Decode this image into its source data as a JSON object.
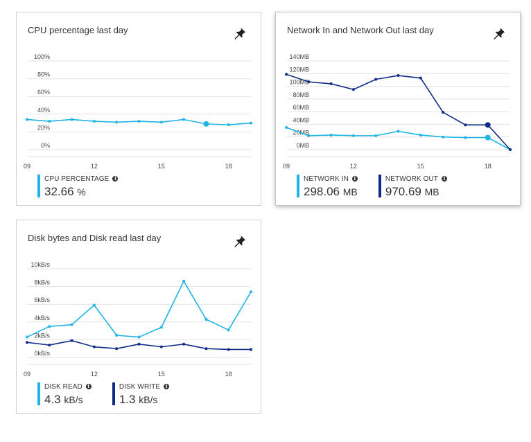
{
  "colors": {
    "series_light": "#1eb4e6",
    "series_dark": "#0e2a86",
    "grid": "#e2e2e2",
    "axis_text": "#444444"
  },
  "tiles": [
    {
      "title": "CPU percentage last day",
      "pin_icon": "pin-icon",
      "legend": [
        {
          "label": "CPU PERCENTAGE",
          "value": "32.66",
          "unit": "%",
          "color": "#1eb4e6"
        }
      ]
    },
    {
      "title": "Network In and Network Out last day",
      "pin_icon": "pin-icon",
      "legend": [
        {
          "label": "NETWORK IN",
          "value": "298.06",
          "unit": "MB",
          "color": "#1eb4e6"
        },
        {
          "label": "NETWORK OUT",
          "value": "970.69",
          "unit": "MB",
          "color": "#0e2a86"
        }
      ]
    },
    {
      "title": "Disk bytes and Disk read last day",
      "pin_icon": "pin-icon",
      "legend": [
        {
          "label": "DISK READ",
          "value": "4.3",
          "unit": "kB/s",
          "color": "#1eb4e6"
        },
        {
          "label": "DISK WRITE",
          "value": "1.3",
          "unit": "kB/s",
          "color": "#0e2a86"
        }
      ]
    }
  ],
  "chart_data": [
    {
      "type": "line",
      "title": "CPU percentage last day",
      "x": [
        9,
        10,
        11,
        12,
        13,
        14,
        15,
        16,
        17,
        18,
        19
      ],
      "x_ticks": [
        "09",
        "12",
        "15",
        "18"
      ],
      "x_tick_values": [
        9,
        12,
        15,
        18
      ],
      "xlim": [
        9,
        19
      ],
      "y_ticks": [
        "0%",
        "20%",
        "40%",
        "60%",
        "80%",
        "100%"
      ],
      "ylim": [
        0,
        100
      ],
      "grid": true,
      "series": [
        {
          "name": "CPU PERCENTAGE",
          "color": "#1eb4e6",
          "values": [
            34,
            32,
            34,
            32,
            31,
            32,
            31,
            34,
            29,
            28,
            30
          ],
          "highlight_index": 8
        }
      ]
    },
    {
      "type": "line",
      "title": "Network In and Network Out last day",
      "x": [
        9,
        10,
        11,
        12,
        13,
        14,
        15,
        16,
        17,
        18,
        19
      ],
      "x_ticks": [
        "09",
        "12",
        "15",
        "18"
      ],
      "x_tick_values": [
        9,
        12,
        15,
        18
      ],
      "xlim": [
        9,
        19
      ],
      "y_ticks": [
        "0MB",
        "20MB",
        "40MB",
        "60MB",
        "80MB",
        "100MB",
        "120MB",
        "140MB"
      ],
      "ylim": [
        0,
        140
      ],
      "grid": true,
      "series": [
        {
          "name": "NETWORK IN",
          "color": "#1eb4e6",
          "values": [
            35,
            22,
            23,
            22,
            22,
            29,
            23,
            20,
            19,
            19,
            0
          ],
          "highlight_index": 9
        },
        {
          "name": "NETWORK OUT",
          "color": "#0e2a86",
          "values": [
            119,
            107,
            104,
            95,
            111,
            117,
            113,
            59,
            39,
            39,
            0
          ],
          "highlight_index": 9
        }
      ]
    },
    {
      "type": "line",
      "title": "Disk bytes and Disk read last day",
      "x": [
        9,
        10,
        11,
        12,
        13,
        14,
        15,
        16,
        17,
        18,
        19
      ],
      "x_ticks": [
        "09",
        "12",
        "15",
        "18"
      ],
      "x_tick_values": [
        9,
        12,
        15,
        18
      ],
      "xlim": [
        9,
        19
      ],
      "y_ticks": [
        "0kB/s",
        "2kB/s",
        "4kB/s",
        "6kB/s",
        "8kB/s",
        "10kB/s"
      ],
      "ylim": [
        0,
        10
      ],
      "grid": true,
      "series": [
        {
          "name": "DISK READ",
          "color": "#1eb4e6",
          "values": [
            2.3,
            3.5,
            3.7,
            5.9,
            2.5,
            2.3,
            3.4,
            8.6,
            4.3,
            3.1,
            7.4
          ]
        },
        {
          "name": "DISK WRITE",
          "color": "#0e2a86",
          "values": [
            1.7,
            1.4,
            1.9,
            1.2,
            1.0,
            1.5,
            1.2,
            1.5,
            1.0,
            0.9,
            0.9
          ]
        }
      ]
    }
  ]
}
